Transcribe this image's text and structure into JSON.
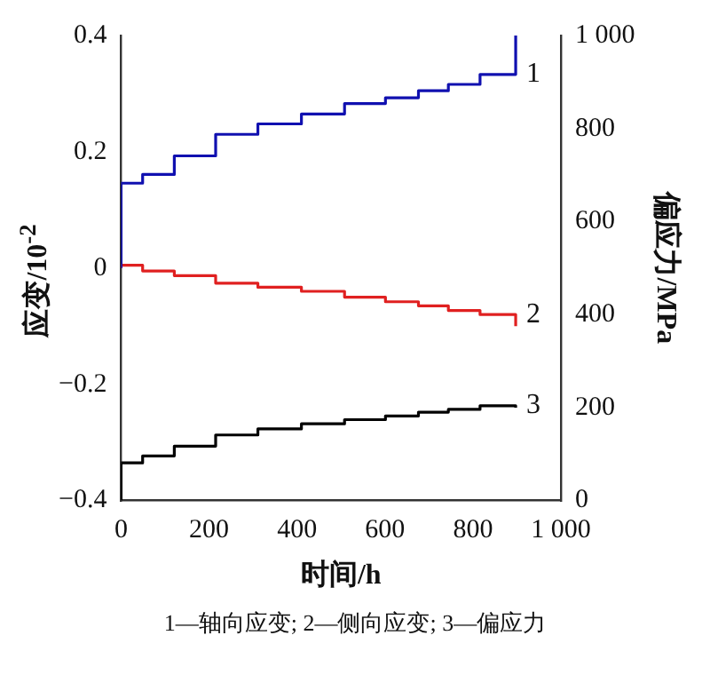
{
  "chart_data": {
    "type": "step",
    "xlabel": "时间/h",
    "ylabel": "应变/10$^{-2}$",
    "y2label": "偏应力/MPa",
    "xlim": [
      0,
      1000
    ],
    "xticks": [
      0,
      200,
      400,
      600,
      800,
      {
        "value": 1000,
        "label": "1 000"
      }
    ],
    "ylim": [
      -0.4,
      0.4
    ],
    "yticks": [
      {
        "value": -0.4,
        "label": "−0.4"
      },
      {
        "value": -0.2,
        "label": "−0.2"
      },
      0,
      0.2,
      0.4
    ],
    "y2lim": [
      0,
      1000
    ],
    "y2ticks": [
      0,
      200,
      400,
      600,
      800,
      {
        "value": 1000,
        "label": "1 000"
      }
    ],
    "grid": false,
    "legend": false,
    "series": [
      {
        "name": "1",
        "color": "#1010b0",
        "x": [
          0,
          0,
          49,
          121,
          215,
          311,
          410,
          508,
          601,
          676,
          744,
          816,
          897
        ],
        "values": [
          0,
          0.146,
          0.161,
          0.193,
          0.23,
          0.248,
          0.265,
          0.283,
          0.293,
          0.305,
          0.316,
          0.333,
          0.4
        ]
      },
      {
        "name": "2",
        "color": "#e02020",
        "x": [
          0,
          0,
          49,
          121,
          215,
          311,
          410,
          508,
          601,
          676,
          744,
          816,
          897
        ],
        "values": [
          0,
          0.005,
          -0.005,
          -0.013,
          -0.026,
          -0.033,
          -0.04,
          -0.05,
          -0.058,
          -0.065,
          -0.073,
          -0.08,
          -0.1
        ]
      },
      {
        "name": "3",
        "color": "#000000",
        "axis": "y2",
        "x": [
          0,
          0,
          49,
          121,
          215,
          311,
          410,
          508,
          601,
          676,
          744,
          816,
          897
        ],
        "values": [
          0,
          81,
          96,
          117,
          141,
          154,
          165,
          174,
          182,
          190,
          196,
          204,
          200
        ]
      }
    ],
    "annotations": [
      "1—轴向应变; 2—侧向应变; 3—偏应力"
    ]
  }
}
